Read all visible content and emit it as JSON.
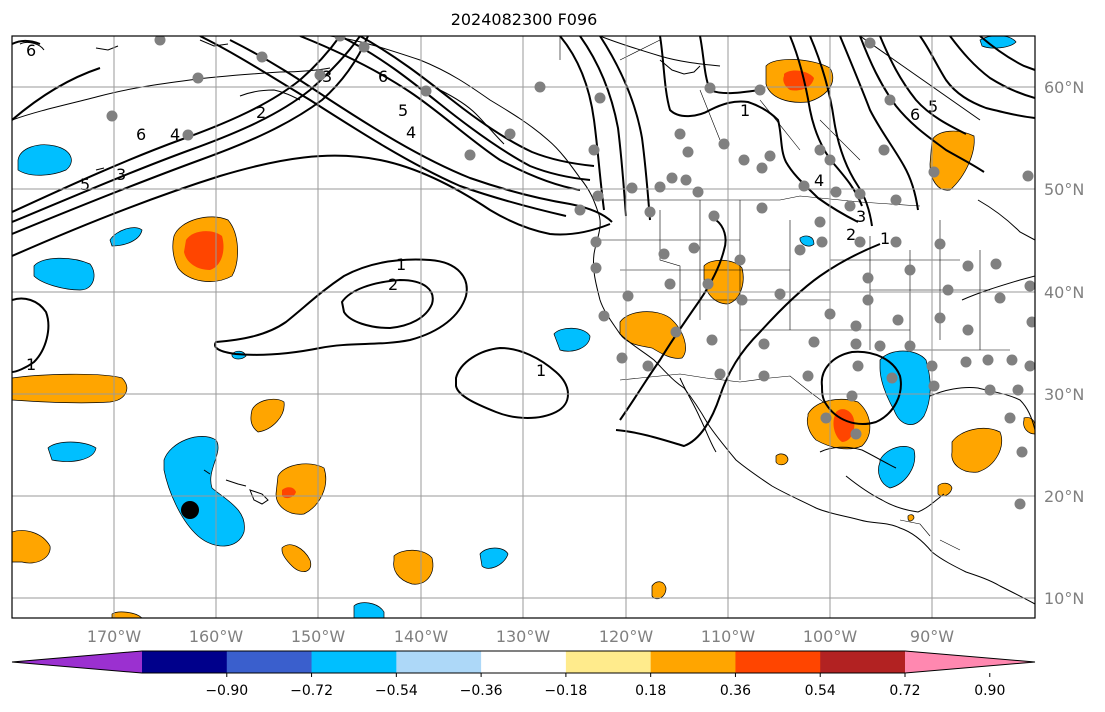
{
  "title": "2024082300 F096",
  "map": {
    "lat_labels": [
      "60°N",
      "50°N",
      "40°N",
      "30°N",
      "20°N",
      "10°N"
    ],
    "lon_labels": [
      "170°W",
      "160°W",
      "150°W",
      "140°W",
      "130°W",
      "120°W",
      "110°W",
      "100°W",
      "90°W"
    ],
    "contour_labels": [
      "1",
      "2",
      "3",
      "4",
      "5",
      "6"
    ],
    "colors": {
      "neg_strong": "#00bfff",
      "pos_moderate": "#ffa500",
      "pos_strong": "#ff4500",
      "station_dot": "#808080",
      "marker_dot": "#000000"
    }
  },
  "colorbar": {
    "ticks": [
      "−0.90",
      "−0.72",
      "−0.54",
      "−0.36",
      "−0.18",
      "0.18",
      "0.36",
      "0.54",
      "0.72",
      "0.90"
    ],
    "colors": [
      "#9b30d0",
      "#00008b",
      "#3a5fcd",
      "#00bfff",
      "#add8f8",
      "#ffffff",
      "#ffeb8c",
      "#ffa500",
      "#ff4500",
      "#b22222",
      "#ff88b0"
    ]
  }
}
